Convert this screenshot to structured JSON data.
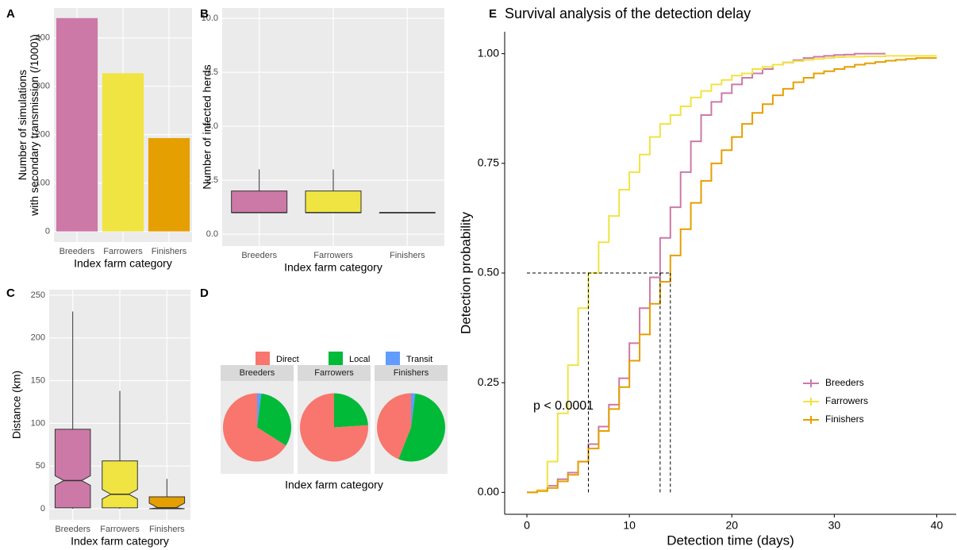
{
  "chart_data": [
    {
      "type": "bar",
      "tag": "A",
      "ylabel": [
        "Number of simulations",
        "with secondary transmission (/1000))"
      ],
      "xlabel": "Index farm category",
      "categories": [
        "Breeders",
        "Farrowers",
        "Finishers"
      ],
      "values": [
        441,
        327,
        193
      ],
      "colors": [
        "#CC79A7",
        "#F0E442",
        "#E69F00"
      ],
      "ylim": [
        -22,
        462
      ],
      "yticks": [
        0,
        100,
        200,
        300,
        400
      ],
      "grid": true
    },
    {
      "type": "box",
      "tag": "B",
      "ylabel": "Number of infected herds",
      "xlabel": "Index farm category",
      "categories": [
        "Breeders",
        "Farrowers",
        "Finishers"
      ],
      "colors": [
        "#CC79A7",
        "#F0E442",
        "#E69F00"
      ],
      "boxes": [
        {
          "min": 1,
          "q1": 1,
          "median": 1,
          "q3": 2,
          "max": 3
        },
        {
          "min": 1,
          "q1": 1,
          "median": 1,
          "q3": 2,
          "max": 3
        },
        {
          "min": 1,
          "q1": 1,
          "median": 1,
          "q3": 1,
          "max": 1
        }
      ],
      "ylim": [
        -0.55,
        10.48
      ],
      "yticks": [
        {
          "value": 0,
          "label": "0.0"
        },
        {
          "value": 2.5,
          "label": "2.5"
        },
        {
          "value": 5,
          "label": "5.0"
        },
        {
          "value": 7.5,
          "label": "7.5"
        },
        {
          "value": 10,
          "label": "10.0"
        }
      ],
      "grid": true
    },
    {
      "type": "box",
      "tag": "C",
      "ylabel": "Distance (km)",
      "xlabel": "Index farm category",
      "notch": true,
      "categories": [
        "Breeders",
        "Farrowers",
        "Finishers"
      ],
      "colors": [
        "#CC79A7",
        "#F0E442",
        "#E69F00"
      ],
      "boxes": [
        {
          "min": 0,
          "q1": 1,
          "median": 33,
          "q3": 93,
          "max": 231
        },
        {
          "min": 0,
          "q1": 1,
          "median": 17,
          "q3": 56,
          "max": 138
        },
        {
          "min": 0,
          "q1": 0,
          "median": 1,
          "q3": 14,
          "max": 35
        }
      ],
      "ylim": [
        -13,
        256.5
      ],
      "yticks": [
        0,
        50,
        100,
        150,
        200,
        250
      ],
      "grid": true
    },
    {
      "type": "pie",
      "tag": "D",
      "xlabel": "Index farm category",
      "categories": [
        "Direct",
        "Local",
        "Transit"
      ],
      "colors": [
        "#F8766D",
        "#00BA38",
        "#619CFF"
      ],
      "facets": [
        {
          "name": "Breeders",
          "values": [
            66,
            32,
            2
          ]
        },
        {
          "name": "Farrowers",
          "values": [
            76,
            24,
            0
          ]
        },
        {
          "name": "Finishers",
          "values": [
            44,
            54,
            2
          ]
        }
      ]
    },
    {
      "type": "line",
      "tag": "E",
      "title": "Survival analysis of the detection delay",
      "xlabel": "Detection time (days)",
      "ylabel": "Detection probability",
      "annotation": "p < 0.0001",
      "median_probability": 0.5,
      "x": [
        0,
        1,
        2,
        3,
        4,
        5,
        6,
        7,
        8,
        9,
        10,
        11,
        12,
        13,
        14,
        15,
        16,
        17,
        18,
        19,
        20,
        21,
        22,
        23,
        24,
        25,
        26,
        27,
        28,
        29,
        30,
        31,
        32,
        33,
        34,
        35,
        36,
        37,
        38,
        39,
        40
      ],
      "series": [
        {
          "name": "Breeders",
          "color": "#CC79A7",
          "median": 13,
          "values": [
            0,
            0.005,
            0.015,
            0.03,
            0.045,
            0.07,
            0.11,
            0.15,
            0.2,
            0.26,
            0.34,
            0.42,
            0.49,
            0.58,
            0.65,
            0.73,
            0.8,
            0.86,
            0.89,
            0.91,
            0.93,
            0.945,
            0.955,
            0.965,
            0.975,
            0.98,
            0.985,
            0.99,
            0.993,
            0.995,
            0.997,
            0.998,
            1,
            1,
            1,
            1,
            null,
            null,
            null,
            null,
            null
          ]
        },
        {
          "name": "Farrowers",
          "color": "#F0E442",
          "median": 6,
          "values": [
            0,
            0.005,
            0.07,
            0.18,
            0.29,
            0.42,
            0.5,
            0.57,
            0.63,
            0.69,
            0.73,
            0.77,
            0.81,
            0.84,
            0.86,
            0.88,
            0.9,
            0.915,
            0.93,
            0.94,
            0.95,
            0.955,
            0.965,
            0.97,
            0.975,
            0.98,
            0.983,
            0.986,
            0.988,
            0.99,
            0.992,
            0.993,
            0.993,
            0.994,
            0.994,
            0.995,
            0.995,
            0.995,
            0.995,
            0.995,
            0.995
          ]
        },
        {
          "name": "Finishers",
          "color": "#E69F00",
          "median": 14,
          "values": [
            0,
            0.003,
            0.01,
            0.025,
            0.04,
            0.07,
            0.1,
            0.14,
            0.19,
            0.24,
            0.3,
            0.36,
            0.43,
            0.48,
            0.54,
            0.6,
            0.66,
            0.71,
            0.75,
            0.78,
            0.81,
            0.84,
            0.865,
            0.885,
            0.905,
            0.92,
            0.935,
            0.945,
            0.955,
            0.96,
            0.965,
            0.97,
            0.975,
            0.978,
            0.981,
            0.984,
            0.986,
            0.988,
            0.99,
            0.99,
            0.99
          ]
        }
      ],
      "xlim": [
        -2.17,
        41.9
      ],
      "xticks": [
        0,
        10,
        20,
        30,
        40
      ],
      "ylim": [
        -0.05,
        1.05
      ],
      "yticks": [
        {
          "value": 0,
          "label": "0.00"
        },
        {
          "value": 0.25,
          "label": "0.25"
        },
        {
          "value": 0.5,
          "label": "0.50"
        },
        {
          "value": 0.75,
          "label": "0.75"
        },
        {
          "value": 1,
          "label": "1.00"
        }
      ]
    }
  ]
}
